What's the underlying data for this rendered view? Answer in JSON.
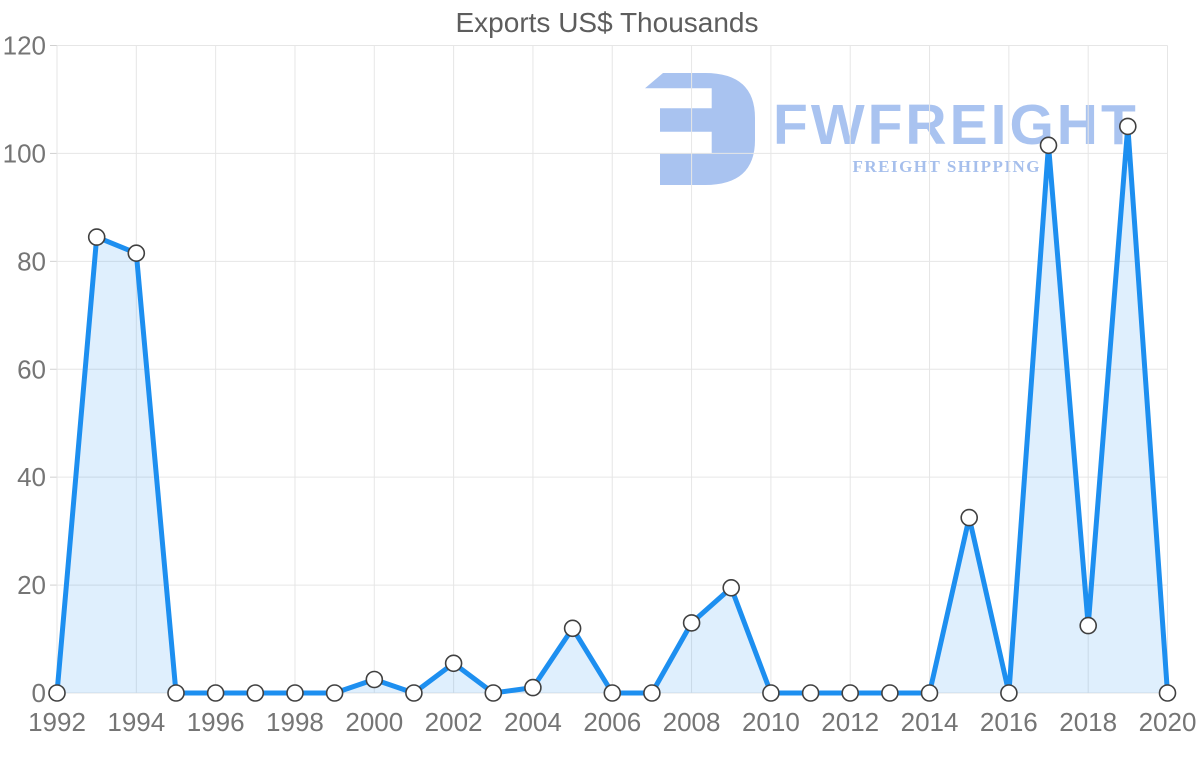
{
  "chart_data": {
    "type": "area",
    "title": "Exports US$ Thousands",
    "xlabel": "",
    "ylabel": "",
    "x": [
      1992,
      1993,
      1994,
      1995,
      1996,
      1997,
      1998,
      1999,
      2000,
      2001,
      2002,
      2003,
      2004,
      2005,
      2006,
      2007,
      2008,
      2009,
      2010,
      2011,
      2012,
      2013,
      2014,
      2015,
      2016,
      2017,
      2018,
      2019,
      2020
    ],
    "values": [
      0,
      84.5,
      81.5,
      0,
      0,
      0,
      0,
      0,
      2.5,
      0,
      5.5,
      0,
      1,
      12,
      0,
      0,
      13,
      19.5,
      0,
      0,
      0,
      0,
      0,
      32.5,
      0,
      101.5,
      12.5,
      105,
      0
    ],
    "series_name": "Exports US$ Thousands",
    "ylim": [
      0,
      120
    ],
    "y_ticks": [
      0,
      20,
      40,
      60,
      80,
      100,
      120
    ],
    "x_tick_years": [
      1992,
      1994,
      1996,
      1998,
      2000,
      2002,
      2004,
      2006,
      2008,
      2010,
      2012,
      2014,
      2016,
      2018,
      2020
    ],
    "grid": true,
    "legend": "none",
    "marker": "circle",
    "colors": {
      "line": "#1d8ff0",
      "area_fill": "rgba(30, 144, 240, 0.14)",
      "marker_fill": "#ffffff",
      "marker_stroke": "#404040",
      "grid": "#e6e6e6",
      "tick": "#d0d0d0",
      "axis_text": "#757575",
      "title_text": "#5d5d5d"
    }
  },
  "watermark": {
    "brand": "FWFREIGHT",
    "tagline": "FREIGHT SHIPPING",
    "logo_icon": "fw-monogram-icon",
    "color_primary": "#a9c3f0",
    "color_tagline": "#a6bfec"
  }
}
